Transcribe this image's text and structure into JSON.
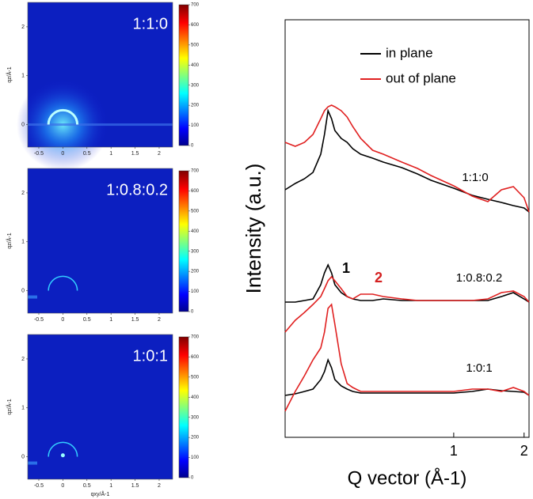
{
  "chart_data": [
    {
      "type": "image",
      "label": "1:1:0",
      "ylabel": "qz/Å-1",
      "xlim": [
        -0.73,
        2.28
      ],
      "ylim": [
        -0.46,
        2.5
      ],
      "xticks": [
        -0.5,
        0,
        0.5,
        1,
        1.5,
        2
      ],
      "yticks": [
        0,
        1,
        2
      ],
      "clim": [
        0,
        700
      ],
      "cticks": [
        0,
        100,
        200,
        300,
        400,
        500,
        600,
        700
      ]
    },
    {
      "type": "image",
      "label": "1:0.8:0.2",
      "ylabel": "qz/Å-1",
      "xlim": [
        -0.73,
        2.28
      ],
      "ylim": [
        -0.46,
        2.5
      ],
      "xticks": [
        -0.5,
        0,
        0.5,
        1,
        1.5,
        2
      ],
      "yticks": [
        0,
        1,
        2
      ],
      "clim": [
        0,
        700
      ],
      "cticks": [
        0,
        100,
        200,
        300,
        400,
        500,
        600,
        700
      ]
    },
    {
      "type": "image",
      "label": "1:0:1",
      "ylabel": "qz/Å-1",
      "xlabel": "qxy/Å-1",
      "xlim": [
        -0.73,
        2.28
      ],
      "ylim": [
        -0.46,
        2.5
      ],
      "xticks": [
        -0.5,
        0,
        0.5,
        1,
        1.5,
        2
      ],
      "yticks": [
        0,
        1,
        2
      ],
      "clim": [
        0,
        700
      ],
      "cticks": [
        0,
        100,
        200,
        300,
        400,
        500,
        600,
        700
      ]
    },
    {
      "type": "line",
      "xlabel": "Q vector (Å-1)",
      "ylabel": "Intensity (a.u.)",
      "xscale": "log",
      "xlim": [
        0.19,
        2.1
      ],
      "ylim": [
        32,
        560
      ],
      "xticks": [
        1,
        2
      ],
      "samples": [
        "1:1:0",
        "1:0.8:0.2",
        "1:0:1"
      ],
      "annotations": [
        {
          "text": "1",
          "color": "#000000"
        },
        {
          "text": "2",
          "color": "#d42020"
        }
      ],
      "x": [
        0.19,
        0.21,
        0.23,
        0.25,
        0.27,
        0.28,
        0.29,
        0.3,
        0.31,
        0.33,
        0.35,
        0.37,
        0.4,
        0.45,
        0.5,
        0.6,
        0.7,
        0.8,
        1.0,
        1.2,
        1.4,
        1.6,
        1.8,
        2.0,
        2.1
      ],
      "series": [
        {
          "name": "in plane",
          "color": "#000000",
          "values": [
            [
              345,
              353,
              359,
              367,
              390,
              415,
              445,
              435,
              420,
              410,
              405,
              397,
              390,
              385,
              380,
              373,
              365,
              357,
              347,
              338,
              333,
              329,
              325,
              322,
              317
            ],
            [
              203,
              203,
              205,
              207,
              225,
              240,
              250,
              240,
              225,
              215,
              210,
              207,
              205,
              205,
              207,
              205,
              205,
              205,
              205,
              205,
              205,
              210,
              215,
              207,
              203
            ],
            [
              85,
              87,
              90,
              93,
              105,
              115,
              130,
              120,
              105,
              97,
              93,
              90,
              88,
              88,
              88,
              88,
              88,
              88,
              88,
              90,
              93,
              91,
              90,
              89,
              85
            ]
          ]
        },
        {
          "name": "out of plane",
          "color": "#e02020",
          "values": [
            [
              405,
              400,
              405,
              415,
              435,
              445,
              450,
              452,
              450,
              445,
              437,
              425,
              410,
              395,
              390,
              380,
              372,
              363,
              350,
              337,
              330,
              345,
              349,
              335,
              317
            ],
            [
              165,
              180,
              190,
              200,
              210,
              220,
              230,
              235,
              230,
              220,
              210,
              207,
              213,
              213,
              210,
              207,
              205,
              205,
              205,
              205,
              207,
              215,
              217,
              210,
              203
            ],
            [
              65,
              90,
              110,
              130,
              145,
              165,
              195,
              200,
              175,
              125,
              100,
              95,
              90,
              90,
              90,
              90,
              90,
              90,
              90,
              93,
              93,
              90,
              95,
              90,
              85
            ]
          ]
        }
      ]
    }
  ]
}
